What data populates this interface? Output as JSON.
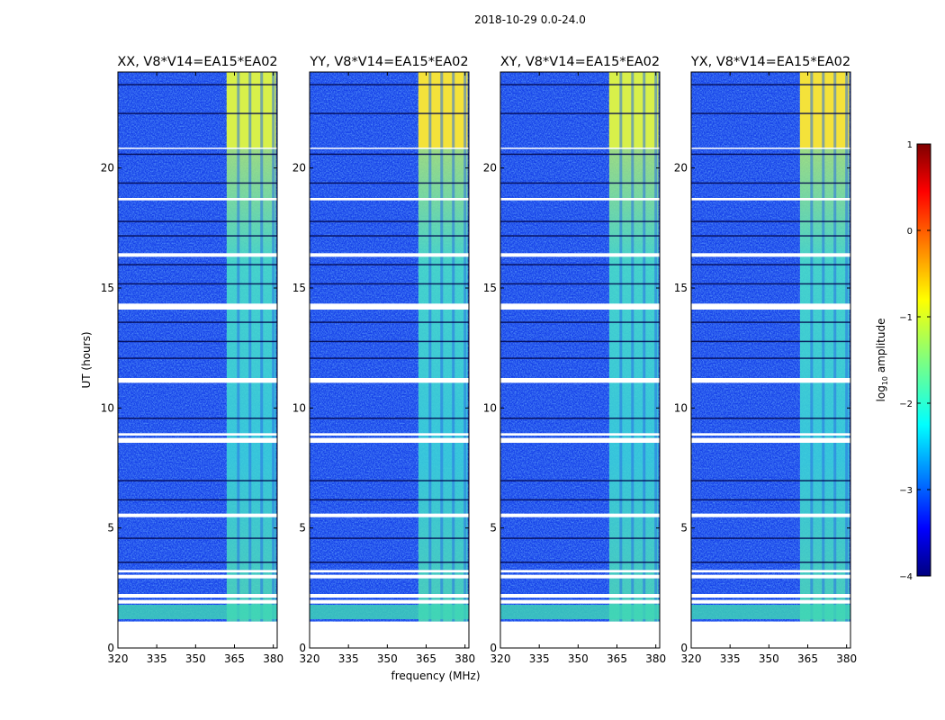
{
  "chart_data": {
    "type": "heatmap",
    "suptitle": "2018-10-29 0.0-24.0",
    "xlabel": "frequency (MHz)",
    "ylabel": "UT (hours)",
    "xlim": [
      320,
      381.5
    ],
    "ylim": [
      0,
      24
    ],
    "xticks": [
      320,
      335,
      350,
      365,
      380
    ],
    "yticks": [
      0,
      5,
      10,
      15,
      20
    ],
    "panels": [
      {
        "title": "XX, V8*V14=EA15*EA02"
      },
      {
        "title": "YY, V8*V14=EA15*EA02"
      },
      {
        "title": "XY, V8*V14=EA15*EA02"
      },
      {
        "title": "YX, V8*V14=EA15*EA02"
      }
    ],
    "colorbar": {
      "label_prefix": "log",
      "label_sub": "10",
      "label_suffix": " amplitude",
      "range": [
        -4,
        1
      ],
      "ticks": [
        "1",
        "0",
        "−1",
        "−2",
        "−3",
        "−4"
      ],
      "colormap": "jet"
    },
    "rfi_band_mhz": [
      362,
      381
    ],
    "data_start_ut": 1.1,
    "flagged_gaps_ut": [
      [
        1.85,
        2.0
      ],
      [
        2.1,
        2.25
      ],
      [
        2.9,
        3.05
      ],
      [
        3.15,
        3.25
      ],
      [
        5.45,
        5.6
      ],
      [
        8.55,
        8.75
      ],
      [
        8.85,
        8.95
      ],
      [
        11.05,
        11.25
      ],
      [
        14.1,
        14.35
      ],
      [
        16.3,
        16.45
      ],
      [
        18.65,
        18.75
      ],
      [
        20.8,
        20.85
      ]
    ]
  }
}
